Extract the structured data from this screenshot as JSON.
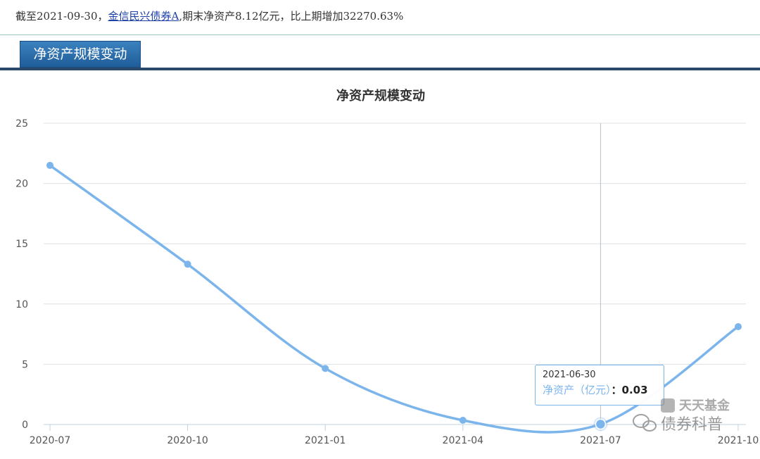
{
  "summary": {
    "prefix": "截至2021-09-30，",
    "fund_name": "金信民兴债券A",
    "suffix": ",期末净资产8.12亿元，比上期增加32270.63%"
  },
  "tab": {
    "label": "净资产规模变动"
  },
  "chart_data": {
    "type": "line",
    "title": "净资产规模变动",
    "x": [
      "2020-06-30",
      "2020-09-30",
      "2020-12-31",
      "2021-03-31",
      "2021-06-30",
      "2021-09-30"
    ],
    "x_tick_labels": [
      "2020-07",
      "2020-10",
      "2021-01",
      "2021-04",
      "2021-07",
      "2021-10"
    ],
    "series": [
      {
        "values": [
          21.5,
          13.3,
          4.65,
          0.35,
          0.03,
          8.12
        ]
      }
    ],
    "ylim": [
      0,
      25
    ],
    "y_ticks": [
      0,
      5,
      10,
      15,
      20,
      25
    ],
    "grid": true,
    "color": "#7cb5ec"
  },
  "tooltip": {
    "date": "2021-06-30",
    "series_label": "净资产（亿元）",
    "separator": "：",
    "value": "0.03"
  },
  "watermark": {
    "wechat_text": "债券科普",
    "brand_text": "天天基金"
  }
}
